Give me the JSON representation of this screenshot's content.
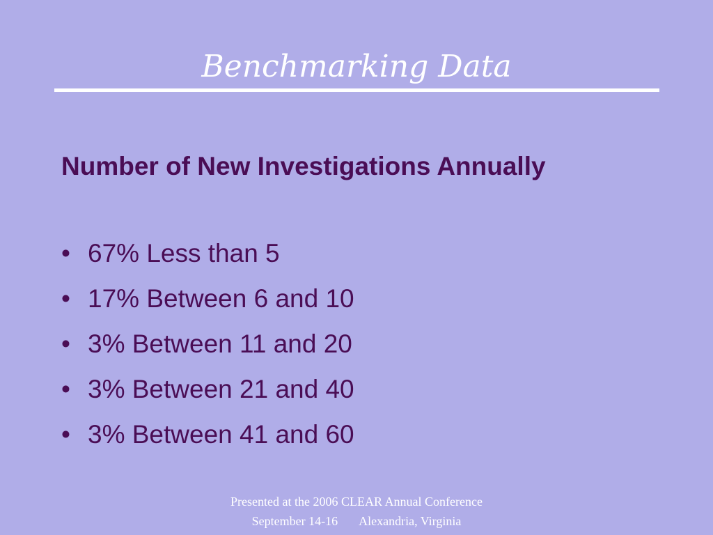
{
  "slide": {
    "title": "Benchmarking Data",
    "heading": "Number of New Investigations Annually",
    "bullets": [
      "67% Less than 5",
      "17% Between 6 and 10",
      "3% Between 11 and 20",
      "3% Between 21 and 40",
      "3% Between 41 and 60"
    ],
    "bullet_glyph": "•",
    "footer": {
      "line1": "Presented at the 2006 CLEAR Annual Conference",
      "line2_dates": "September 14-16",
      "line2_place": "Alexandria, Virginia"
    }
  },
  "colors": {
    "background": "#b0ade8",
    "text_primary": "#4a0d55",
    "title": "#ffffff"
  }
}
